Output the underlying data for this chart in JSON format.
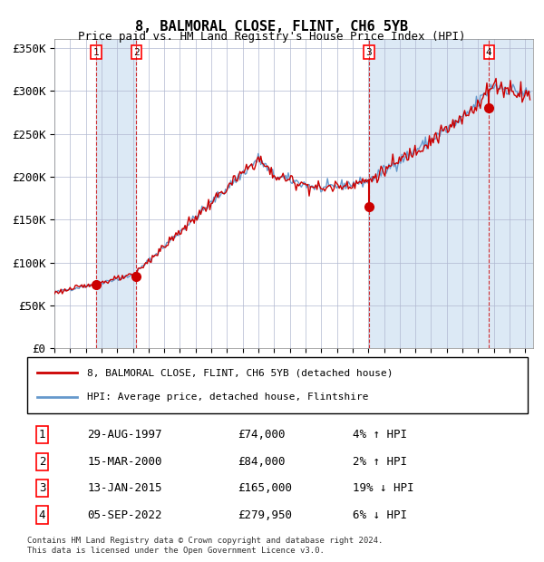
{
  "title": "8, BALMORAL CLOSE, FLINT, CH6 5YB",
  "subtitle": "Price paid vs. HM Land Registry's House Price Index (HPI)",
  "footer": "Contains HM Land Registry data © Crown copyright and database right 2024.\nThis data is licensed under the Open Government Licence v3.0.",
  "legend_line1": "8, BALMORAL CLOSE, FLINT, CH6 5YB (detached house)",
  "legend_line2": "HPI: Average price, detached house, Flintshire",
  "hpi_color": "#6699cc",
  "price_color": "#cc0000",
  "sale_marker_color": "#cc0000",
  "vline_color": "#cc0000",
  "bg_color": "#dce9f5",
  "plot_bg": "#ffffff",
  "grid_color": "#aaaacc",
  "sales": [
    {
      "label": "1",
      "date_str": "29-AUG-1997",
      "year": 1997.66,
      "price": 74000,
      "pct": "4%",
      "dir": "↑"
    },
    {
      "label": "2",
      "date_str": "15-MAR-2000",
      "year": 2000.21,
      "price": 84000,
      "pct": "2%",
      "dir": "↑"
    },
    {
      "label": "3",
      "date_str": "13-JAN-2015",
      "year": 2015.04,
      "price": 165000,
      "pct": "19%",
      "dir": "↓"
    },
    {
      "label": "4",
      "date_str": "05-SEP-2022",
      "year": 2022.68,
      "price": 279950,
      "pct": "6%",
      "dir": "↓"
    }
  ],
  "ylim": [
    0,
    360000
  ],
  "xlim_start": 1995.0,
  "xlim_end": 2025.5,
  "yticks": [
    0,
    50000,
    100000,
    150000,
    200000,
    250000,
    300000,
    350000
  ],
  "ytick_labels": [
    "£0",
    "£50K",
    "£100K",
    "£150K",
    "£200K",
    "£250K",
    "£300K",
    "£350K"
  ]
}
